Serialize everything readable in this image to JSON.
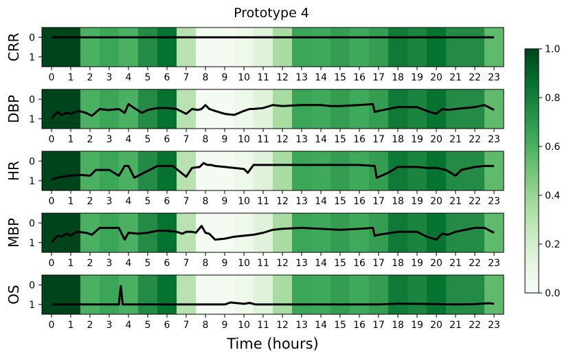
{
  "chart_data": {
    "type": "heatmap",
    "title": "Prototype 4",
    "xlabel": "Time (hours)",
    "x_ticks": [
      "0",
      "1",
      "2",
      "3",
      "4",
      "5",
      "6",
      "7",
      "8",
      "9",
      "10",
      "11",
      "12",
      "13",
      "14",
      "15",
      "16",
      "17",
      "18",
      "19",
      "20",
      "21",
      "22",
      "23"
    ],
    "y_ticks": [
      "0",
      "1"
    ],
    "xlim": [
      -0.5,
      23.5
    ],
    "ylim": [
      1.5,
      -0.5
    ],
    "colormap": "Greens",
    "heat_values": [
      1.0,
      1.0,
      0.6,
      0.65,
      0.6,
      0.75,
      0.85,
      0.3,
      0.02,
      0.02,
      0.06,
      0.15,
      0.35,
      0.65,
      0.63,
      0.68,
      0.63,
      0.68,
      0.82,
      0.78,
      0.85,
      0.75,
      0.75,
      0.55
    ],
    "colorbar": {
      "ticks": [
        "0.0",
        "0.2",
        "0.4",
        "0.6",
        "0.8",
        "1.0"
      ],
      "range": [
        0,
        1
      ]
    },
    "series": [
      {
        "name": "CRR",
        "x": [
          0,
          23
        ],
        "y": [
          0,
          0
        ]
      },
      {
        "name": "DBP",
        "x": [
          0,
          0.3,
          0.5,
          0.8,
          1.0,
          1.4,
          1.8,
          2.1,
          2.5,
          2.9,
          3.0,
          3.5,
          3.8,
          4.0,
          4.3,
          4.7,
          5.0,
          5.5,
          6.0,
          6.5,
          6.8,
          7.0,
          7.3,
          7.6,
          7.8,
          8.0,
          8.2,
          8.5,
          9.0,
          9.5,
          10.0,
          10.3,
          10.5,
          11.0,
          11.5,
          12.0,
          13.0,
          14.0,
          14.5,
          15.0,
          16.0,
          16.7,
          16.8,
          17.0,
          17.5,
          18.0,
          18.5,
          19.0,
          19.5,
          20.0,
          20.3,
          20.6,
          21.0,
          22.0,
          22.5,
          23.0
        ],
        "y": [
          1.0,
          0.65,
          0.8,
          0.7,
          0.75,
          0.6,
          0.7,
          0.85,
          0.5,
          0.55,
          0.55,
          0.5,
          0.7,
          0.25,
          0.45,
          0.7,
          0.55,
          0.45,
          0.45,
          0.5,
          0.65,
          0.75,
          0.5,
          0.55,
          0.5,
          0.3,
          0.5,
          0.6,
          0.75,
          0.8,
          0.6,
          0.5,
          0.5,
          0.45,
          0.3,
          0.35,
          0.3,
          0.3,
          0.35,
          0.35,
          0.3,
          0.25,
          0.65,
          0.6,
          0.5,
          0.4,
          0.4,
          0.4,
          0.6,
          0.75,
          0.5,
          0.55,
          0.5,
          0.4,
          0.3,
          0.55
        ]
      },
      {
        "name": "HR",
        "x": [
          0,
          0.3,
          0.5,
          1.0,
          1.5,
          2.0,
          2.3,
          3.0,
          3.5,
          3.8,
          4.0,
          4.3,
          5.0,
          5.5,
          6.0,
          6.3,
          7.0,
          7.3,
          7.7,
          7.9,
          8.1,
          8.3,
          8.5,
          9.0,
          9.5,
          10.0,
          10.2,
          10.5,
          11.0,
          12.0,
          13.0,
          14.0,
          15.0,
          16.0,
          16.8,
          16.9,
          17.5,
          18.0,
          18.5,
          19.0,
          19.5,
          20.0,
          20.5,
          21.0,
          21.3,
          22.0,
          22.5,
          23.0
        ],
        "y": [
          0.95,
          0.85,
          0.8,
          0.75,
          0.7,
          0.75,
          0.45,
          0.45,
          0.75,
          0.25,
          0.25,
          0.85,
          0.5,
          0.25,
          0.25,
          0.25,
          0.8,
          0.35,
          0.3,
          0.1,
          0.2,
          0.2,
          0.25,
          0.3,
          0.35,
          0.4,
          0.6,
          0.2,
          0.2,
          0.2,
          0.2,
          0.2,
          0.2,
          0.2,
          0.25,
          0.85,
          0.6,
          0.3,
          0.3,
          0.3,
          0.35,
          0.35,
          0.45,
          0.75,
          0.45,
          0.3,
          0.25,
          0.25
        ]
      },
      {
        "name": "MBP",
        "x": [
          0,
          0.3,
          0.5,
          0.8,
          1.0,
          1.3,
          1.8,
          2.1,
          2.5,
          3.0,
          3.5,
          3.8,
          4.0,
          4.5,
          5.0,
          5.5,
          6.0,
          6.5,
          6.8,
          7.0,
          7.3,
          7.5,
          7.8,
          8.0,
          8.2,
          8.5,
          9.0,
          9.5,
          10.0,
          10.5,
          11.0,
          11.5,
          12.0,
          13.0,
          14.0,
          15.0,
          16.0,
          16.7,
          16.8,
          17.0,
          18.0,
          19.0,
          19.5,
          20.0,
          20.3,
          20.6,
          21.0,
          22.0,
          22.5,
          23.0
        ],
        "y": [
          1.0,
          0.65,
          0.7,
          0.55,
          0.65,
          0.45,
          0.5,
          0.6,
          0.25,
          0.25,
          0.25,
          0.85,
          0.5,
          0.55,
          0.5,
          0.4,
          0.4,
          0.45,
          0.55,
          0.45,
          0.45,
          0.5,
          0.15,
          0.5,
          0.55,
          0.85,
          0.8,
          0.7,
          0.65,
          0.6,
          0.5,
          0.35,
          0.3,
          0.25,
          0.3,
          0.35,
          0.3,
          0.25,
          0.65,
          0.6,
          0.45,
          0.45,
          0.7,
          0.85,
          0.55,
          0.6,
          0.45,
          0.25,
          0.25,
          0.5
        ]
      },
      {
        "name": "OS",
        "x": [
          0,
          3.5,
          3.55,
          3.6,
          3.7,
          9.0,
          9.3,
          9.8,
          10.0,
          10.3,
          10.6,
          11.0,
          17.0,
          18.0,
          19.0,
          20.0,
          21.0,
          22.0,
          22.7,
          23.0
        ],
        "y": [
          1.0,
          1.0,
          0.5,
          0.05,
          1.0,
          1.0,
          0.9,
          0.95,
          0.97,
          0.92,
          1.0,
          1.0,
          1.0,
          0.96,
          0.97,
          0.98,
          1.0,
          0.98,
          0.94,
          0.96
        ]
      }
    ]
  }
}
